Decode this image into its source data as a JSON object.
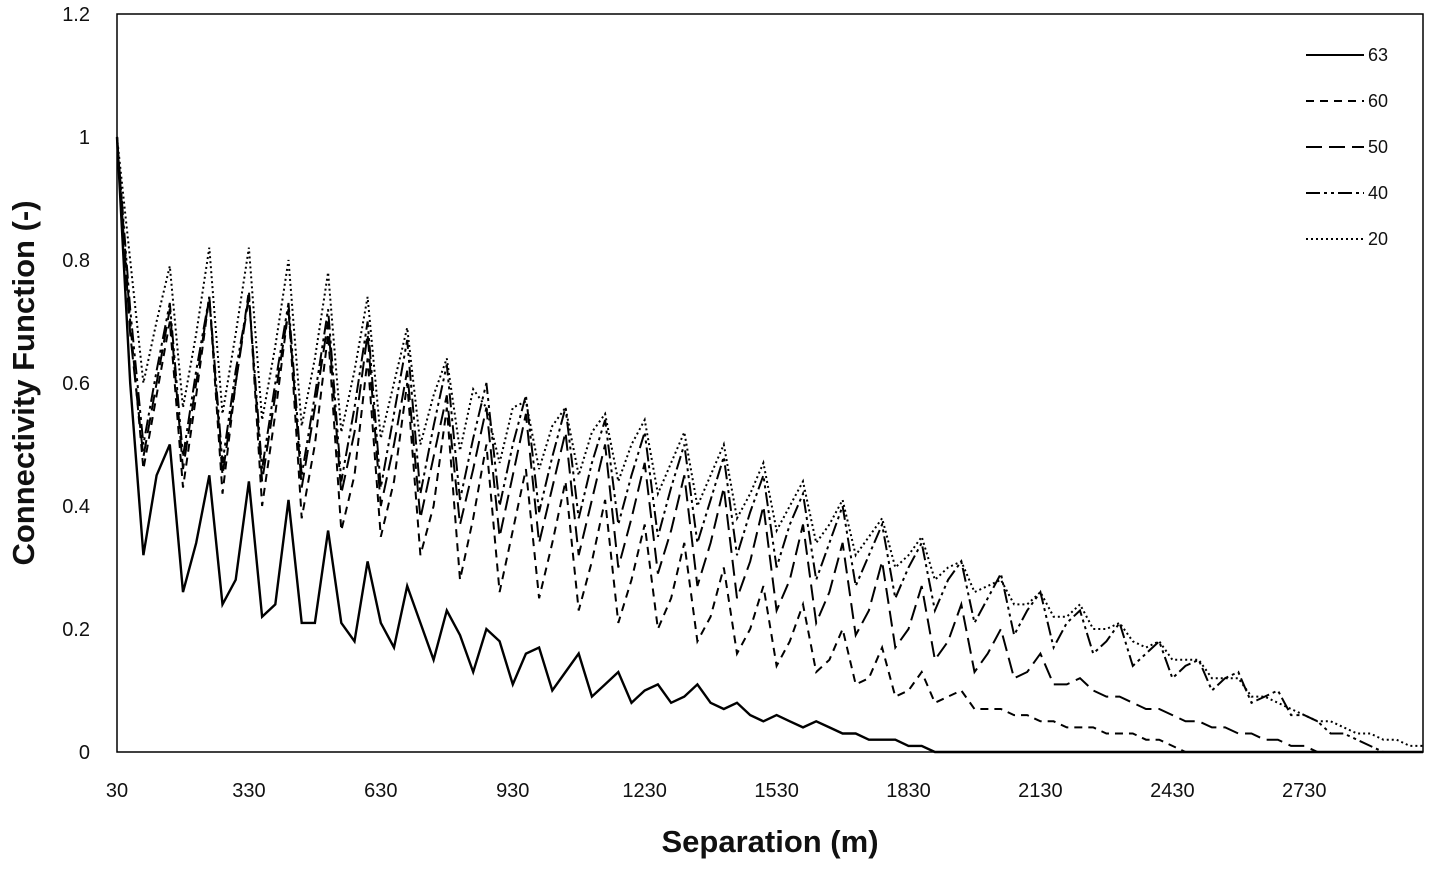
{
  "chart_data": {
    "type": "line",
    "xlabel": "Separation (m)",
    "ylabel": "Connectivity Function (-)",
    "xlim": [
      30,
      3000
    ],
    "ylim": [
      0,
      1.2
    ],
    "x_ticks": [
      30,
      330,
      630,
      930,
      1230,
      1530,
      1830,
      2130,
      2430,
      2730
    ],
    "y_ticks": [
      0,
      0.2,
      0.4,
      0.6,
      0.8,
      1,
      1.2
    ],
    "y_tick_labels": [
      "0",
      "0.2",
      "0.4",
      "0.6",
      "0.8",
      "1",
      "1.2"
    ],
    "grid": false,
    "legend_position": "top-right",
    "x_start": 30,
    "x_step": 30,
    "series": [
      {
        "name": "63",
        "dash": "",
        "values": [
          1.0,
          0.6,
          0.32,
          0.45,
          0.5,
          0.26,
          0.34,
          0.45,
          0.24,
          0.28,
          0.44,
          0.22,
          0.24,
          0.41,
          0.21,
          0.21,
          0.36,
          0.21,
          0.18,
          0.31,
          0.21,
          0.17,
          0.27,
          0.21,
          0.15,
          0.23,
          0.19,
          0.13,
          0.2,
          0.18,
          0.11,
          0.16,
          0.17,
          0.1,
          0.13,
          0.16,
          0.09,
          0.11,
          0.13,
          0.08,
          0.1,
          0.11,
          0.08,
          0.09,
          0.11,
          0.08,
          0.07,
          0.08,
          0.06,
          0.05,
          0.06,
          0.05,
          0.04,
          0.05,
          0.04,
          0.03,
          0.03,
          0.02,
          0.02,
          0.02,
          0.01,
          0.01,
          0.0,
          0.0,
          0.0,
          0.0,
          0.0,
          0.0,
          0.0,
          0.0,
          0.0,
          0.0,
          0.0,
          0.0,
          0.0,
          0.0,
          0.0,
          0.0,
          0.0,
          0.0,
          0.0,
          0.0,
          0.0,
          0.0,
          0.0,
          0.0,
          0.0,
          0.0,
          0.0,
          0.0,
          0.0,
          0.0,
          0.0,
          0.0,
          0.0,
          0.0,
          0.0,
          0.0,
          0.0,
          0.0
        ]
      },
      {
        "name": "60",
        "dash": "8,6",
        "values": [
          1.0,
          0.7,
          0.46,
          0.58,
          0.7,
          0.43,
          0.58,
          0.74,
          0.42,
          0.6,
          0.75,
          0.4,
          0.55,
          0.72,
          0.38,
          0.5,
          0.68,
          0.36,
          0.45,
          0.64,
          0.35,
          0.44,
          0.6,
          0.32,
          0.4,
          0.56,
          0.28,
          0.38,
          0.5,
          0.26,
          0.36,
          0.46,
          0.25,
          0.34,
          0.44,
          0.23,
          0.31,
          0.41,
          0.21,
          0.28,
          0.37,
          0.2,
          0.25,
          0.34,
          0.18,
          0.22,
          0.3,
          0.16,
          0.2,
          0.27,
          0.14,
          0.18,
          0.24,
          0.13,
          0.15,
          0.2,
          0.11,
          0.12,
          0.17,
          0.09,
          0.1,
          0.13,
          0.08,
          0.09,
          0.1,
          0.07,
          0.07,
          0.07,
          0.06,
          0.06,
          0.05,
          0.05,
          0.04,
          0.04,
          0.04,
          0.03,
          0.03,
          0.03,
          0.02,
          0.02,
          0.01,
          0.0,
          0.0,
          0.0,
          0.0,
          0.0,
          0.0,
          0.0,
          0.0,
          0.0,
          0.0,
          0.0,
          0.0,
          0.0,
          0.0,
          0.0,
          0.0,
          0.0,
          0.0,
          0.0
        ]
      },
      {
        "name": "50",
        "dash": "16,7",
        "values": [
          1.0,
          0.68,
          0.48,
          0.6,
          0.72,
          0.46,
          0.6,
          0.74,
          0.45,
          0.6,
          0.74,
          0.44,
          0.58,
          0.72,
          0.43,
          0.56,
          0.7,
          0.42,
          0.52,
          0.68,
          0.4,
          0.5,
          0.62,
          0.38,
          0.48,
          0.58,
          0.37,
          0.46,
          0.56,
          0.35,
          0.45,
          0.55,
          0.34,
          0.43,
          0.52,
          0.32,
          0.41,
          0.5,
          0.3,
          0.38,
          0.47,
          0.29,
          0.36,
          0.45,
          0.27,
          0.34,
          0.43,
          0.25,
          0.31,
          0.4,
          0.23,
          0.28,
          0.37,
          0.21,
          0.26,
          0.34,
          0.19,
          0.23,
          0.31,
          0.17,
          0.2,
          0.27,
          0.15,
          0.18,
          0.24,
          0.13,
          0.16,
          0.2,
          0.12,
          0.13,
          0.16,
          0.11,
          0.11,
          0.12,
          0.1,
          0.09,
          0.09,
          0.08,
          0.07,
          0.07,
          0.06,
          0.05,
          0.05,
          0.04,
          0.04,
          0.03,
          0.03,
          0.02,
          0.02,
          0.01,
          0.01,
          0.0,
          0.0,
          0.0,
          0.0,
          0.0,
          0.0,
          0.0,
          0.0,
          0.0
        ]
      },
      {
        "name": "40",
        "dash": "14,4,3,4,3,4",
        "values": [
          1.0,
          0.72,
          0.5,
          0.62,
          0.73,
          0.48,
          0.62,
          0.74,
          0.47,
          0.62,
          0.74,
          0.46,
          0.6,
          0.73,
          0.45,
          0.58,
          0.72,
          0.44,
          0.56,
          0.7,
          0.43,
          0.55,
          0.67,
          0.42,
          0.53,
          0.63,
          0.41,
          0.51,
          0.6,
          0.4,
          0.5,
          0.58,
          0.39,
          0.48,
          0.56,
          0.38,
          0.47,
          0.54,
          0.37,
          0.45,
          0.52,
          0.35,
          0.43,
          0.5,
          0.34,
          0.41,
          0.48,
          0.32,
          0.39,
          0.45,
          0.3,
          0.37,
          0.42,
          0.28,
          0.34,
          0.4,
          0.27,
          0.32,
          0.37,
          0.25,
          0.3,
          0.34,
          0.23,
          0.28,
          0.31,
          0.21,
          0.25,
          0.29,
          0.19,
          0.23,
          0.26,
          0.17,
          0.21,
          0.23,
          0.16,
          0.18,
          0.21,
          0.14,
          0.16,
          0.18,
          0.12,
          0.14,
          0.15,
          0.1,
          0.12,
          0.13,
          0.08,
          0.09,
          0.1,
          0.06,
          0.06,
          0.05,
          0.03,
          0.03,
          0.02,
          0.01,
          0.0,
          0.0,
          0.0,
          0.0
        ]
      },
      {
        "name": "20",
        "dash": "2,3",
        "values": [
          1.0,
          0.8,
          0.6,
          0.7,
          0.79,
          0.56,
          0.68,
          0.82,
          0.55,
          0.68,
          0.82,
          0.54,
          0.66,
          0.8,
          0.53,
          0.64,
          0.78,
          0.52,
          0.62,
          0.74,
          0.51,
          0.6,
          0.69,
          0.5,
          0.58,
          0.64,
          0.49,
          0.59,
          0.56,
          0.47,
          0.56,
          0.57,
          0.46,
          0.53,
          0.56,
          0.45,
          0.52,
          0.55,
          0.44,
          0.5,
          0.54,
          0.42,
          0.47,
          0.52,
          0.4,
          0.45,
          0.5,
          0.38,
          0.42,
          0.47,
          0.36,
          0.4,
          0.44,
          0.34,
          0.37,
          0.41,
          0.32,
          0.35,
          0.38,
          0.3,
          0.32,
          0.35,
          0.28,
          0.3,
          0.31,
          0.26,
          0.27,
          0.28,
          0.24,
          0.24,
          0.26,
          0.22,
          0.22,
          0.24,
          0.2,
          0.2,
          0.21,
          0.18,
          0.17,
          0.18,
          0.15,
          0.15,
          0.15,
          0.12,
          0.12,
          0.12,
          0.09,
          0.09,
          0.08,
          0.07,
          0.06,
          0.05,
          0.05,
          0.04,
          0.03,
          0.03,
          0.02,
          0.02,
          0.01,
          0.01
        ]
      }
    ]
  }
}
